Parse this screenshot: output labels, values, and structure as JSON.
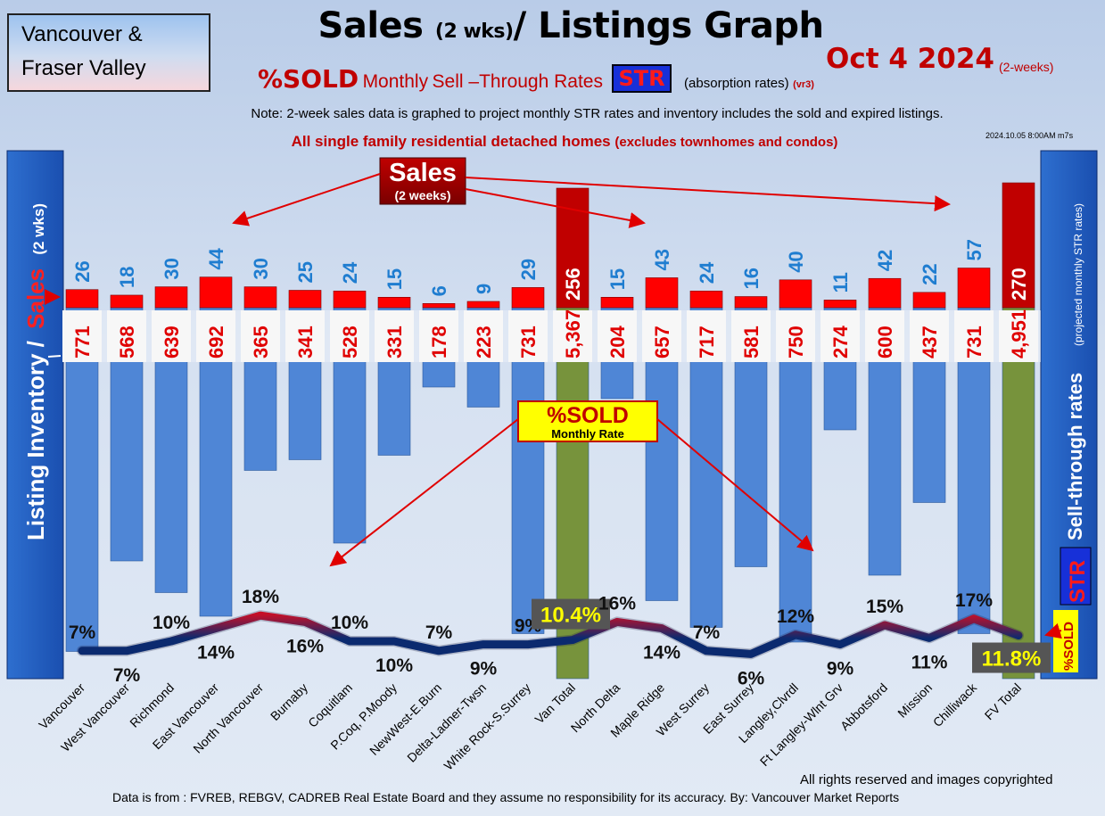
{
  "header": {
    "region_line1": "Vancouver &",
    "region_line2": "Fraser Valley",
    "title_main": "Sales",
    "title_paren": "(2 wks)",
    "title_rest": "/ Listings Graph",
    "date": "Oct 4  2024",
    "date_sub": "(2-weeks)",
    "subtitle_sold": "%SOLD",
    "subtitle_monthly": "Monthly",
    "subtitle_rates": "Sell –Through Rates",
    "str_badge": "STR",
    "absorption": "(absorption rates)",
    "version": "(vr3)",
    "note": "Note: 2-week sales data is graphed to project monthly STR rates and inventory includes the sold and expired listings.",
    "scope_main": "All single family residential detached homes",
    "scope_paren": "(excludes townhomes and condos)",
    "stamp": "2024.10.05 8:00AM m7s"
  },
  "footer": {
    "rights": "All rights reserved and  images copyrighted",
    "source": "Data is from : FVREB, REBGV, CADREB Real Estate Board and they assume no responsibility for its accuracy. By: Vancouver Market Reports"
  },
  "chart_data": {
    "type": "bar",
    "title": "Sales (2 wks)/ Listings Graph",
    "left_axis_label_listing": "Listing Inventory /",
    "left_axis_label_sales": "Sales",
    "left_axis_label_paren": "(2  wks)",
    "right_axis_label": "Sell-through rates",
    "right_axis_label_paren": "(projected monthly STR rates)",
    "right_str_label": "STR",
    "right_sold_label": "%SOLD",
    "callout_sales": "Sales",
    "callout_sales_sub": "(2 weeks)",
    "callout_sold": "%SOLD",
    "callout_sold_sub": "Monthly Rate",
    "categories": [
      "Vancouver",
      "West Vancouver",
      "Richmond",
      "East Vancouver",
      "North Vancouver",
      "Burnaby",
      "Coquitlam",
      "P.Coq, P.Moody",
      "NewWest-E.Burn",
      "Delta-Ladner-Twsn",
      "White Rock-S.Surrey",
      "Van Total",
      "North Delta",
      "Maple Ridge",
      "West Surrey",
      "East Surrey",
      "Langley,Clvrdl",
      "Ft Langley-Wlnt Grv",
      "Abbotsford",
      "Mission",
      "Chilliwack",
      "FV Total"
    ],
    "series": [
      {
        "name": "Sales",
        "values": [
          26,
          18,
          30,
          44,
          30,
          25,
          24,
          15,
          6,
          9,
          29,
          256,
          15,
          43,
          24,
          16,
          40,
          11,
          42,
          22,
          57,
          270
        ],
        "color": "#ff0000"
      },
      {
        "name": "Listing Inventory",
        "values": [
          771,
          568,
          639,
          692,
          365,
          341,
          528,
          331,
          178,
          223,
          731,
          5367,
          204,
          657,
          717,
          581,
          750,
          274,
          600,
          437,
          731,
          4951
        ],
        "color": "#4f86d6"
      },
      {
        "name": "%SOLD",
        "values": [
          7,
          7,
          10,
          14,
          18,
          16,
          10,
          10,
          7,
          9,
          9,
          10.4,
          16,
          14,
          7,
          6,
          12,
          9,
          15,
          11,
          17,
          11.8
        ]
      }
    ],
    "sales_labels": [
      "26",
      "18",
      "30",
      "44",
      "30",
      "25",
      "24",
      "15",
      "6",
      "9",
      "29",
      "256",
      "15",
      "43",
      "24",
      "16",
      "40",
      "11",
      "42",
      "22",
      "57",
      "270"
    ],
    "inventory_labels": [
      "771",
      "568",
      "639",
      "692",
      "365",
      "341",
      "528",
      "331",
      "178",
      "223",
      "731",
      "5,367",
      "204",
      "657",
      "717",
      "581",
      "750",
      "274",
      "600",
      "437",
      "731",
      "4,951"
    ],
    "str_labels": [
      "7%",
      "7%",
      "10%",
      "14%",
      "18%",
      "16%",
      "10%",
      "10%",
      "7%",
      "9%",
      "9%",
      "10.4%",
      "16%",
      "14%",
      "7%",
      "6%",
      "12%",
      "9%",
      "15%",
      "11%",
      "17%",
      "11.8%"
    ],
    "total_categories": [
      "Van Total",
      "FV Total"
    ],
    "colors": {
      "sales": "#ff0000",
      "sales_total": "#c00000",
      "inventory": "#4f86d6",
      "inventory_total": "#77933c",
      "sales_label": "#1f7dd0",
      "str_line_high": "#ff0000",
      "str_line_low": "#0b2a6f",
      "total_str_badge_bg": "#555555",
      "total_str_badge_text": "#ffff00",
      "side_panel": "#1f5fc0",
      "accent_red": "#c00000"
    }
  }
}
